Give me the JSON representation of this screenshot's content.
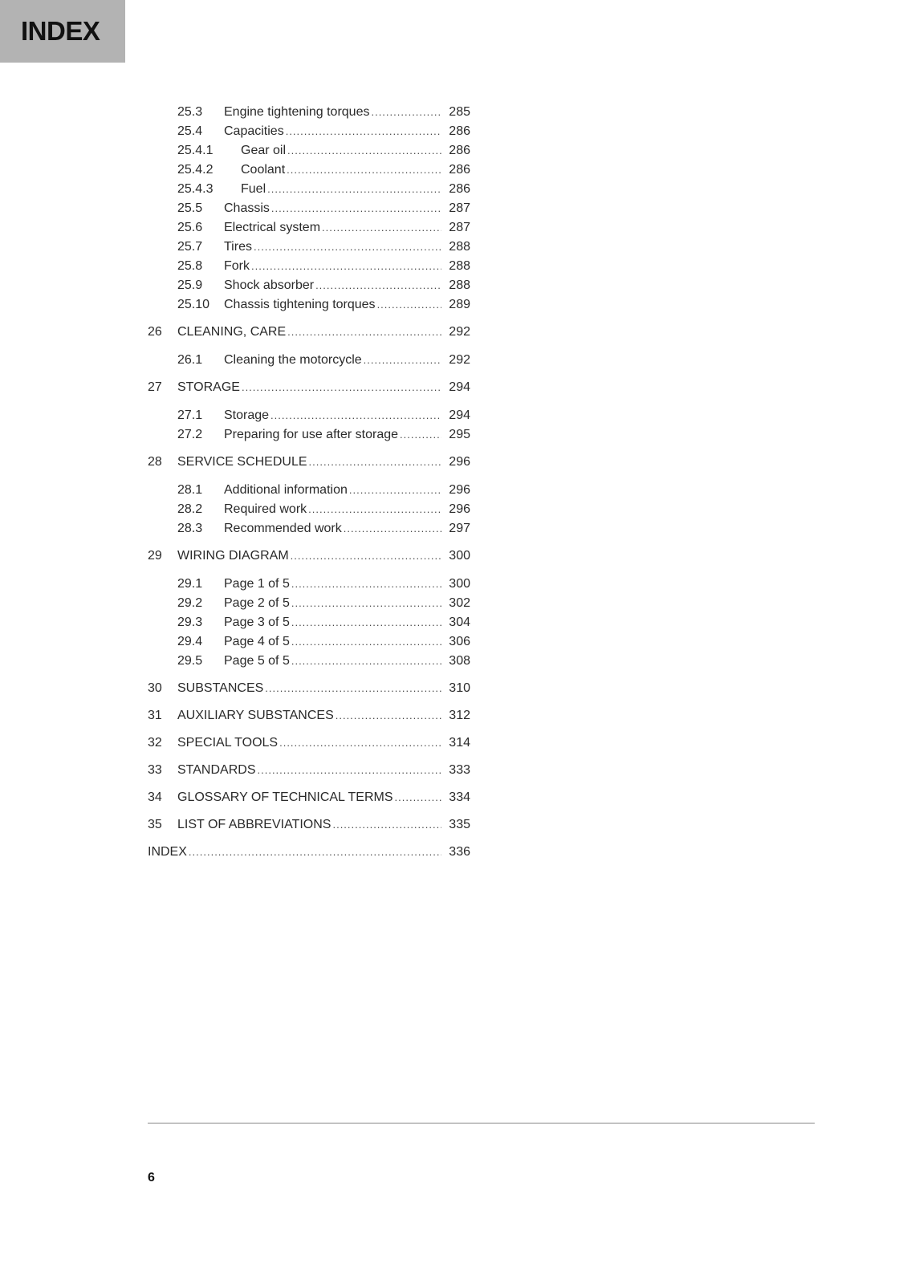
{
  "header": {
    "title": "INDEX"
  },
  "toc": [
    {
      "level": "sub",
      "num": "25.3",
      "title": "Engine tightening torques",
      "page": "285"
    },
    {
      "level": "sub",
      "num": "25.4",
      "title": "Capacities",
      "page": "286"
    },
    {
      "level": "subsub",
      "num": "25.4.1",
      "title": "Gear oil",
      "page": "286"
    },
    {
      "level": "subsub",
      "num": "25.4.2",
      "title": "Coolant",
      "page": "286"
    },
    {
      "level": "subsub",
      "num": "25.4.3",
      "title": "Fuel",
      "page": "286"
    },
    {
      "level": "sub",
      "num": "25.5",
      "title": "Chassis",
      "page": "287"
    },
    {
      "level": "sub",
      "num": "25.6",
      "title": "Electrical system",
      "page": "287"
    },
    {
      "level": "sub",
      "num": "25.7",
      "title": "Tires",
      "page": "288"
    },
    {
      "level": "sub",
      "num": "25.8",
      "title": "Fork",
      "page": "288"
    },
    {
      "level": "sub",
      "num": "25.9",
      "title": "Shock absorber",
      "page": "288"
    },
    {
      "level": "sub",
      "num": "25.10",
      "title": "Chassis tightening torques",
      "page": "289"
    },
    {
      "level": "chap",
      "num": "26",
      "title": "CLEANING, CARE",
      "page": "292"
    },
    {
      "level": "sub",
      "num": "26.1",
      "title": "Cleaning the motorcycle",
      "page": "292"
    },
    {
      "level": "chap",
      "num": "27",
      "title": "STORAGE",
      "page": "294"
    },
    {
      "level": "sub",
      "num": "27.1",
      "title": "Storage",
      "page": "294"
    },
    {
      "level": "sub",
      "num": "27.2",
      "title": "Preparing for use after storage",
      "page": "295"
    },
    {
      "level": "chap",
      "num": "28",
      "title": "SERVICE SCHEDULE",
      "page": "296"
    },
    {
      "level": "sub",
      "num": "28.1",
      "title": "Additional information",
      "page": "296"
    },
    {
      "level": "sub",
      "num": "28.2",
      "title": "Required work",
      "page": "296"
    },
    {
      "level": "sub",
      "num": "28.3",
      "title": "Recommended work",
      "page": "297"
    },
    {
      "level": "chap",
      "num": "29",
      "title": "WIRING DIAGRAM",
      "page": "300"
    },
    {
      "level": "sub",
      "num": "29.1",
      "title": "Page 1 of 5",
      "page": "300"
    },
    {
      "level": "sub",
      "num": "29.2",
      "title": "Page 2 of 5",
      "page": "302"
    },
    {
      "level": "sub",
      "num": "29.3",
      "title": "Page 3 of 5",
      "page": "304"
    },
    {
      "level": "sub",
      "num": "29.4",
      "title": "Page 4 of 5",
      "page": "306"
    },
    {
      "level": "sub",
      "num": "29.5",
      "title": "Page 5 of 5",
      "page": "308"
    },
    {
      "level": "chap",
      "num": "30",
      "title": "SUBSTANCES",
      "page": "310"
    },
    {
      "level": "chap",
      "num": "31",
      "title": "AUXILIARY SUBSTANCES",
      "page": "312"
    },
    {
      "level": "chap",
      "num": "32",
      "title": "SPECIAL TOOLS",
      "page": "314"
    },
    {
      "level": "chap",
      "num": "33",
      "title": "STANDARDS",
      "page": "333"
    },
    {
      "level": "chap",
      "num": "34",
      "title": "GLOSSARY OF TECHNICAL TERMS",
      "page": "334"
    },
    {
      "level": "chap",
      "num": "35",
      "title": "LIST OF ABBREVIATIONS",
      "page": "335"
    },
    {
      "level": "chap index",
      "num": "",
      "title": "INDEX",
      "page": "336"
    }
  ],
  "footer": {
    "page_number": "6"
  },
  "colors": {
    "header_tab": "#b3b3b3"
  }
}
